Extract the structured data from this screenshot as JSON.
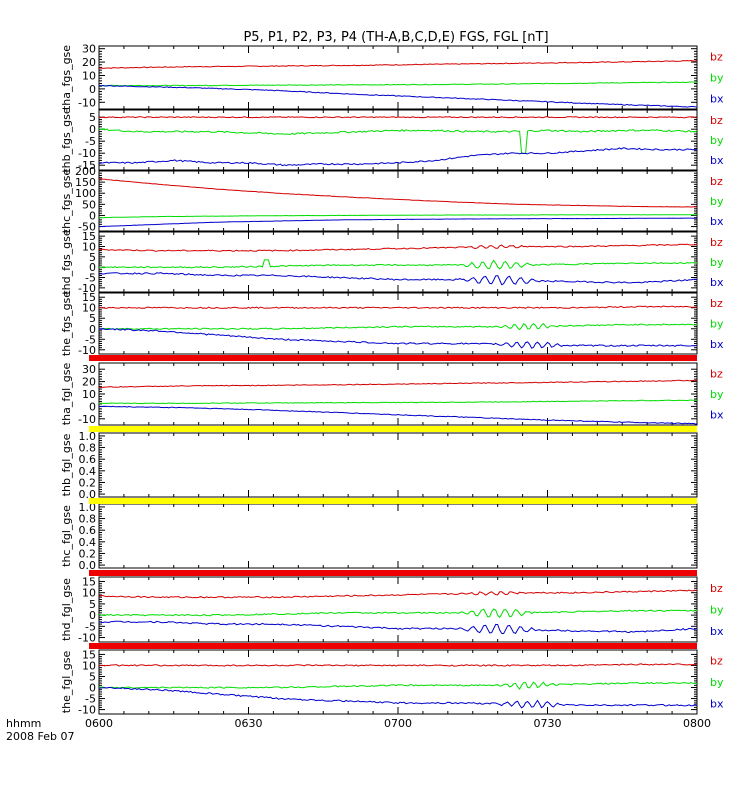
{
  "title": "P5, P1, P2, P3, P4 (TH-A,B,C,D,E) FGS, FGL [nT]",
  "time_axis": {
    "ticks": [
      "0600",
      "0630",
      "0700",
      "0730",
      "0800"
    ],
    "label": "hhmm",
    "date": "2008 Feb 07"
  },
  "chart_data": [
    {
      "type": "line",
      "ylabel": "tha_fgs_gse",
      "ylim": [
        -15,
        32
      ],
      "yticks": [
        "-10",
        "0",
        "10",
        "20",
        "30"
      ],
      "series": [
        {
          "name": "bz",
          "color": "#d40000",
          "values": [
            15.5,
            16.5,
            17,
            17.6,
            18.4,
            19.2,
            20,
            21
          ],
          "noise": 0.3
        },
        {
          "name": "by",
          "color": "#00dd00",
          "values": [
            2.5,
            2.5,
            2.8,
            3,
            3.3,
            3.8,
            4.5,
            5
          ],
          "noise": 0.25
        },
        {
          "name": "bx",
          "color": "#0000cc",
          "values": [
            2.5,
            1,
            -1,
            -4,
            -6.5,
            -9,
            -11.5,
            -13.5
          ],
          "noise": 0.3
        }
      ]
    },
    {
      "type": "line",
      "ylabel": "thb_fgs_gse",
      "ylim": [
        -17,
        8
      ],
      "yticks": [
        "-15",
        "-10",
        "-5",
        "0",
        "5"
      ],
      "series": [
        {
          "name": "bz",
          "color": "#d40000",
          "values": [
            5,
            5,
            5,
            5,
            5,
            5,
            5,
            5,
            5,
            5,
            5,
            5,
            5,
            5,
            5,
            5,
            5
          ],
          "noise": 0.2
        },
        {
          "name": "by",
          "color": "#00dd00",
          "values": [
            0,
            -1,
            -1,
            -1,
            -1.5,
            -2,
            -1.5,
            -1,
            -0.5,
            -0.5,
            -1,
            -1,
            -0.5,
            -1,
            -0.5,
            -0.5,
            -1
          ],
          "noise": 0.35,
          "spike": {
            "x": 0.71,
            "value": -10
          }
        },
        {
          "name": "bx",
          "color": "#0000cc",
          "values": [
            -14,
            -14,
            -13,
            -14,
            -14,
            -15,
            -14.5,
            -14.5,
            -14,
            -13,
            -11,
            -10,
            -10,
            -9,
            -8,
            -8.5,
            -8.5
          ],
          "noise": 0.3
        }
      ]
    },
    {
      "type": "line",
      "ylabel": "thc_fgs_gse",
      "ylim": [
        -70,
        200
      ],
      "yticks": [
        "-50",
        "0",
        "50",
        "100",
        "150",
        "200"
      ],
      "series": [
        {
          "name": "bz",
          "color": "#d40000",
          "values": [
            165,
            140,
            118,
            100,
            85,
            72,
            60,
            50,
            45,
            40,
            38
          ],
          "noise": 0.8
        },
        {
          "name": "by",
          "color": "#00dd00",
          "values": [
            -10,
            -5,
            -3,
            -1,
            0,
            1,
            2,
            2,
            3,
            3,
            3
          ],
          "noise": 0.5
        },
        {
          "name": "bx",
          "color": "#0000cc",
          "values": [
            -50,
            -40,
            -30,
            -25,
            -20,
            -18,
            -16,
            -15,
            -14,
            -13,
            -12
          ],
          "noise": 0.5
        }
      ]
    },
    {
      "type": "line",
      "ylabel": "thd_fgs_gse",
      "ylim": [
        -12,
        17
      ],
      "yticks": [
        "-10",
        "-5",
        "0",
        "5",
        "10",
        "15"
      ],
      "series": [
        {
          "name": "bz",
          "color": "#d40000",
          "values": [
            8.5,
            8,
            8,
            8,
            8.5,
            9,
            9.5,
            10,
            10,
            10.5,
            11
          ],
          "noise": 0.3,
          "waves": {
            "from": 0.6,
            "to": 0.72,
            "amplitude": 0.8
          }
        },
        {
          "name": "by",
          "color": "#00dd00",
          "values": [
            0,
            0,
            0,
            0.5,
            1,
            1,
            1,
            1,
            1.5,
            2,
            2
          ],
          "noise": 0.3,
          "spike": {
            "x": 0.28,
            "value": 3.5
          },
          "waves": {
            "from": 0.6,
            "to": 0.73,
            "amplitude": 2
          }
        },
        {
          "name": "bx",
          "color": "#0000cc",
          "values": [
            -3,
            -3,
            -4,
            -4,
            -5,
            -6,
            -6,
            -6.5,
            -7,
            -7.5,
            -6
          ],
          "noise": 0.35,
          "waves": {
            "from": 0.6,
            "to": 0.74,
            "amplitude": 2.2
          }
        }
      ]
    },
    {
      "type": "line",
      "ylabel": "the_fgs_gse",
      "ylim": [
        -12,
        17
      ],
      "yticks": [
        "-10",
        "-5",
        "0",
        "5",
        "10",
        "15"
      ],
      "series": [
        {
          "name": "bz",
          "color": "#d40000",
          "values": [
            10,
            10,
            10,
            10,
            10,
            10,
            10,
            10,
            10,
            10.5,
            10.5
          ],
          "noise": 0.3
        },
        {
          "name": "by",
          "color": "#00dd00",
          "values": [
            0,
            0,
            0,
            0,
            0.5,
            1,
            1,
            1,
            1.5,
            2,
            2
          ],
          "noise": 0.3,
          "waves": {
            "from": 0.66,
            "to": 0.77,
            "amplitude": 1.5
          }
        },
        {
          "name": "bx",
          "color": "#0000cc",
          "values": [
            0,
            -1,
            -3,
            -5,
            -6,
            -7,
            -7,
            -7.5,
            -8,
            -8,
            -8
          ],
          "noise": 0.35,
          "waves": {
            "from": 0.66,
            "to": 0.78,
            "amplitude": 1.6
          }
        }
      ]
    },
    {
      "type": "line",
      "ylabel": "tha_fgl_gse",
      "ylim": [
        -15,
        35
      ],
      "yticks": [
        "-10",
        "0",
        "10",
        "20",
        "30"
      ],
      "series": [
        {
          "name": "bz",
          "color": "#d40000",
          "values": [
            15.5,
            16.5,
            17,
            17.6,
            18.4,
            19.2,
            20,
            21
          ],
          "noise": 0.3
        },
        {
          "name": "by",
          "color": "#00dd00",
          "values": [
            2.5,
            2.5,
            2.8,
            3,
            3.3,
            3.8,
            4.5,
            5
          ],
          "noise": 0.25
        },
        {
          "name": "bx",
          "color": "#0000cc",
          "values": [
            0,
            -1,
            -3,
            -5.5,
            -8,
            -10.5,
            -12.5,
            -14
          ],
          "noise": 0.3
        }
      ]
    },
    {
      "type": "line",
      "ylabel": "thb_fgl_gse",
      "ylim": [
        -0.05,
        1.05
      ],
      "yticks": [
        "0.0",
        "0.2",
        "0.4",
        "0.6",
        "0.8",
        "1.0"
      ],
      "series": []
    },
    {
      "type": "line",
      "ylabel": "thc_fgl_gse",
      "ylim": [
        -0.05,
        1.05
      ],
      "yticks": [
        "0.0",
        "0.2",
        "0.4",
        "0.6",
        "0.8",
        "1.0"
      ],
      "series": []
    },
    {
      "type": "line",
      "ylabel": "thd_fgl_gse",
      "ylim": [
        -12,
        17
      ],
      "yticks": [
        "-10",
        "-5",
        "0",
        "5",
        "10",
        "15"
      ],
      "series": [
        {
          "name": "bz",
          "color": "#d40000",
          "values": [
            8.5,
            8,
            8,
            8,
            8.5,
            9,
            9.5,
            10,
            10,
            10.5,
            11
          ],
          "noise": 0.3,
          "waves": {
            "from": 0.6,
            "to": 0.72,
            "amplitude": 0.8
          }
        },
        {
          "name": "by",
          "color": "#00dd00",
          "values": [
            0,
            0,
            0,
            0.5,
            1,
            1,
            1,
            1,
            1.5,
            2,
            2
          ],
          "noise": 0.3,
          "waves": {
            "from": 0.6,
            "to": 0.73,
            "amplitude": 2
          }
        },
        {
          "name": "bx",
          "color": "#0000cc",
          "values": [
            -3,
            -3,
            -4,
            -4,
            -5,
            -6,
            -6,
            -6.5,
            -7,
            -7.5,
            -6
          ],
          "noise": 0.35,
          "waves": {
            "from": 0.6,
            "to": 0.74,
            "amplitude": 2.2
          }
        }
      ]
    },
    {
      "type": "line",
      "ylabel": "the_fgl_gse",
      "ylim": [
        -12,
        17
      ],
      "yticks": [
        "-10",
        "-5",
        "0",
        "5",
        "10",
        "15"
      ],
      "series": [
        {
          "name": "bz",
          "color": "#d40000",
          "values": [
            10,
            10,
            10,
            10,
            10,
            10,
            10,
            10,
            10,
            10.5,
            10.5
          ],
          "noise": 0.3
        },
        {
          "name": "by",
          "color": "#00dd00",
          "values": [
            0,
            0,
            0,
            0,
            0.5,
            1,
            1,
            1,
            1.5,
            2,
            2
          ],
          "noise": 0.3,
          "waves": {
            "from": 0.66,
            "to": 0.77,
            "amplitude": 1.5
          }
        },
        {
          "name": "bx",
          "color": "#0000cc",
          "values": [
            0,
            -1,
            -3,
            -5,
            -6,
            -7,
            -7,
            -7.5,
            -8,
            -8,
            -8
          ],
          "noise": 0.35,
          "waves": {
            "from": 0.66,
            "to": 0.78,
            "amplitude": 1.6
          }
        }
      ]
    }
  ],
  "status_bars": [
    {
      "after_panel": 4,
      "color": "#ee0000"
    },
    {
      "after_panel": 5,
      "color": "#ffff00"
    },
    {
      "after_panel": 6,
      "color": "#ffff00"
    },
    {
      "after_panel": 7,
      "color": "#ee0000"
    },
    {
      "after_panel": 8,
      "color": "#ee0000"
    }
  ]
}
